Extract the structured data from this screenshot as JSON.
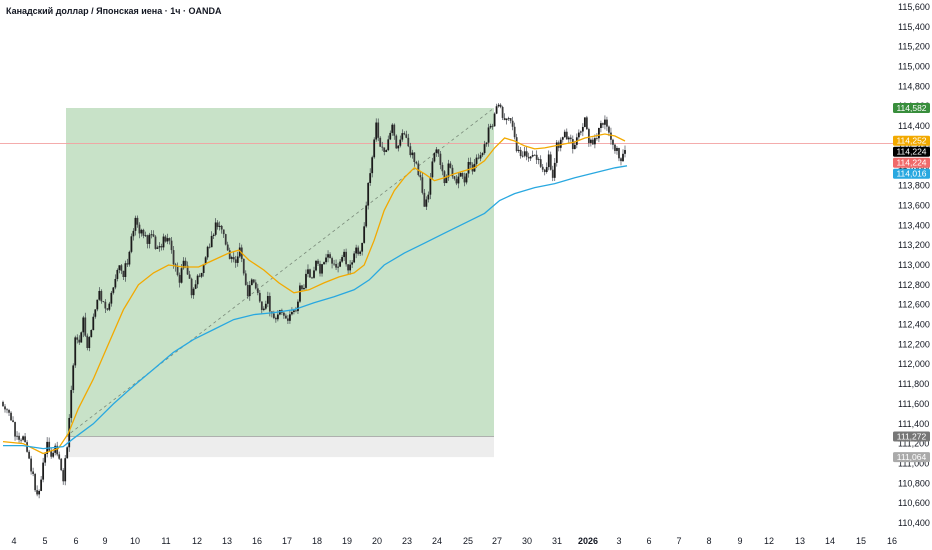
{
  "header": {
    "title": "Канадский доллар / Японская иена · 1ч · OANDA"
  },
  "chart_data": {
    "type": "candlestick",
    "title": "Канадский доллар / Японская иена · 1ч · OANDA",
    "y_ticks": [
      "115,600",
      "115,400",
      "115,200",
      "115,000",
      "114,800",
      "114,600",
      "114,400",
      "114,200",
      "114,000",
      "113,800",
      "113,600",
      "113,400",
      "113,200",
      "113,000",
      "112,800",
      "112,600",
      "112,400",
      "112,200",
      "112,000",
      "111,800",
      "111,600",
      "111,400",
      "111,200",
      "111,000",
      "110,800",
      "110,600",
      "110,400"
    ],
    "ylim": [
      110.4,
      115.6
    ],
    "x_ticks": [
      "4",
      "5",
      "6",
      "9",
      "10",
      "11",
      "12",
      "13",
      "16",
      "17",
      "18",
      "19",
      "20",
      "23",
      "24",
      "25",
      "27",
      "30",
      "31",
      "2026",
      "3",
      "6",
      "7",
      "8",
      "9",
      "12",
      "13",
      "14",
      "15",
      "16"
    ],
    "x_ticks_bold": [
      "2026"
    ],
    "price_tags": [
      {
        "value": 114.582,
        "label": "114,582",
        "color": "#388e3c"
      },
      {
        "value": 114.252,
        "label": "114,252",
        "color": "#f2a900"
      },
      {
        "value": 114.224,
        "label": "114,224",
        "color": "#000000"
      },
      {
        "value": 114.224,
        "label": "114,224",
        "color": "#f06a6a"
      },
      {
        "value": 114.016,
        "label": "114,016",
        "color": "#29a8e0"
      },
      {
        "value": 111.272,
        "label": "111,272",
        "color": "#777777"
      },
      {
        "value": 111.064,
        "label": "111,064",
        "color": "#aaaaaa"
      }
    ],
    "current_price": 114.224,
    "position": {
      "entry": 111.272,
      "target": 114.582,
      "stop": 111.064
    },
    "series": [
      {
        "kind": "candles",
        "points": [
          [
            0,
            111.62
          ],
          [
            4,
            111.55
          ],
          [
            8,
            111.45
          ],
          [
            12,
            111.3
          ],
          [
            16,
            111.2
          ],
          [
            20,
            111.25
          ],
          [
            24,
            111.15
          ],
          [
            28,
            110.95
          ],
          [
            32,
            110.75
          ],
          [
            36,
            110.68
          ],
          [
            40,
            111.0
          ],
          [
            44,
            111.2
          ],
          [
            48,
            111.1
          ],
          [
            52,
            111.15
          ],
          [
            56,
            111.05
          ],
          [
            60,
            110.85
          ],
          [
            64,
            111.2
          ],
          [
            66,
            111.45
          ],
          [
            68,
            111.75
          ],
          [
            70,
            112.0
          ],
          [
            72,
            112.3
          ],
          [
            76,
            112.25
          ],
          [
            80,
            112.45
          ],
          [
            84,
            112.2
          ],
          [
            88,
            112.35
          ],
          [
            92,
            112.55
          ],
          [
            96,
            112.7
          ],
          [
            100,
            112.65
          ],
          [
            104,
            112.55
          ],
          [
            108,
            112.7
          ],
          [
            112,
            112.9
          ],
          [
            116,
            113.0
          ],
          [
            120,
            112.9
          ],
          [
            124,
            113.05
          ],
          [
            128,
            113.25
          ],
          [
            132,
            113.45
          ],
          [
            136,
            113.35
          ],
          [
            140,
            113.3
          ],
          [
            144,
            113.25
          ],
          [
            148,
            113.3
          ],
          [
            152,
            113.2
          ],
          [
            156,
            113.15
          ],
          [
            160,
            113.25
          ],
          [
            164,
            113.3
          ],
          [
            168,
            113.15
          ],
          [
            172,
            112.95
          ],
          [
            176,
            112.85
          ],
          [
            180,
            113.0
          ],
          [
            184,
            112.95
          ],
          [
            188,
            112.7
          ],
          [
            192,
            112.8
          ],
          [
            196,
            112.9
          ],
          [
            200,
            113.0
          ],
          [
            204,
            113.15
          ],
          [
            208,
            113.25
          ],
          [
            212,
            113.4
          ],
          [
            216,
            113.35
          ],
          [
            220,
            113.3
          ],
          [
            224,
            113.15
          ],
          [
            228,
            113.05
          ],
          [
            232,
            113.0
          ],
          [
            236,
            113.2
          ],
          [
            240,
            112.9
          ],
          [
            244,
            112.7
          ],
          [
            248,
            112.85
          ],
          [
            252,
            112.75
          ],
          [
            256,
            112.6
          ],
          [
            260,
            112.55
          ],
          [
            264,
            112.65
          ],
          [
            268,
            112.5
          ],
          [
            272,
            112.45
          ],
          [
            276,
            112.55
          ],
          [
            280,
            112.5
          ],
          [
            284,
            112.45
          ],
          [
            288,
            112.55
          ],
          [
            292,
            112.5
          ],
          [
            296,
            112.75
          ],
          [
            300,
            112.8
          ],
          [
            304,
            112.95
          ],
          [
            308,
            112.85
          ],
          [
            312,
            113.05
          ],
          [
            316,
            112.95
          ],
          [
            320,
            113.0
          ],
          [
            324,
            113.1
          ],
          [
            328,
            113.0
          ],
          [
            332,
            112.95
          ],
          [
            336,
            113.05
          ],
          [
            340,
            113.1
          ],
          [
            344,
            112.95
          ],
          [
            348,
            113.05
          ],
          [
            352,
            113.15
          ],
          [
            356,
            113.1
          ],
          [
            360,
            113.4
          ],
          [
            364,
            113.8
          ],
          [
            368,
            114.05
          ],
          [
            372,
            114.4
          ],
          [
            376,
            114.2
          ],
          [
            380,
            114.1
          ],
          [
            384,
            114.3
          ],
          [
            388,
            114.4
          ],
          [
            392,
            114.2
          ],
          [
            396,
            114.25
          ],
          [
            400,
            114.35
          ],
          [
            404,
            114.2
          ],
          [
            408,
            114.1
          ],
          [
            412,
            114.0
          ],
          [
            416,
            113.85
          ],
          [
            420,
            113.6
          ],
          [
            424,
            113.75
          ],
          [
            428,
            114.0
          ],
          [
            432,
            114.2
          ],
          [
            436,
            114.0
          ],
          [
            440,
            113.85
          ],
          [
            444,
            114.0
          ],
          [
            448,
            113.9
          ],
          [
            452,
            113.8
          ],
          [
            456,
            113.95
          ],
          [
            460,
            113.85
          ],
          [
            464,
            114.0
          ],
          [
            468,
            113.95
          ],
          [
            472,
            114.05
          ],
          [
            476,
            114.1
          ],
          [
            480,
            114.2
          ],
          [
            484,
            114.35
          ],
          [
            488,
            114.4
          ],
          [
            492,
            114.6
          ],
          [
            496,
            114.55
          ],
          [
            500,
            114.45
          ],
          [
            504,
            114.5
          ],
          [
            508,
            114.35
          ],
          [
            512,
            114.15
          ],
          [
            516,
            114.1
          ],
          [
            520,
            114.15
          ],
          [
            524,
            114.05
          ],
          [
            528,
            114.15
          ],
          [
            532,
            114.1
          ],
          [
            536,
            114.0
          ],
          [
            540,
            113.95
          ],
          [
            544,
            114.1
          ],
          [
            548,
            113.85
          ],
          [
            552,
            114.2
          ],
          [
            556,
            114.25
          ],
          [
            560,
            114.3
          ],
          [
            564,
            114.25
          ],
          [
            568,
            114.2
          ],
          [
            572,
            114.3
          ],
          [
            576,
            114.35
          ],
          [
            580,
            114.5
          ],
          [
            584,
            114.25
          ],
          [
            588,
            114.2
          ],
          [
            592,
            114.3
          ],
          [
            596,
            114.4
          ],
          [
            600,
            114.45
          ],
          [
            604,
            114.35
          ],
          [
            608,
            114.2
          ],
          [
            612,
            114.15
          ],
          [
            616,
            114.05
          ],
          [
            620,
            114.2
          ]
        ]
      },
      {
        "kind": "line",
        "name": "",
        "color": "#f2a900",
        "points": [
          [
            0,
            111.22
          ],
          [
            20,
            111.2
          ],
          [
            40,
            111.1
          ],
          [
            55,
            111.15
          ],
          [
            65,
            111.3
          ],
          [
            75,
            111.55
          ],
          [
            90,
            111.85
          ],
          [
            105,
            112.2
          ],
          [
            120,
            112.55
          ],
          [
            135,
            112.8
          ],
          [
            150,
            112.92
          ],
          [
            165,
            113.0
          ],
          [
            180,
            112.98
          ],
          [
            195,
            112.98
          ],
          [
            210,
            113.05
          ],
          [
            225,
            113.12
          ],
          [
            235,
            113.15
          ],
          [
            245,
            113.05
          ],
          [
            260,
            112.95
          ],
          [
            275,
            112.82
          ],
          [
            290,
            112.72
          ],
          [
            305,
            112.75
          ],
          [
            320,
            112.82
          ],
          [
            335,
            112.88
          ],
          [
            350,
            112.92
          ],
          [
            360,
            113.0
          ],
          [
            370,
            113.25
          ],
          [
            380,
            113.55
          ],
          [
            390,
            113.75
          ],
          [
            400,
            113.88
          ],
          [
            410,
            113.98
          ],
          [
            420,
            113.92
          ],
          [
            430,
            113.85
          ],
          [
            440,
            113.88
          ],
          [
            450,
            113.92
          ],
          [
            460,
            113.95
          ],
          [
            470,
            113.98
          ],
          [
            480,
            114.05
          ],
          [
            490,
            114.18
          ],
          [
            500,
            114.28
          ],
          [
            510,
            114.25
          ],
          [
            520,
            114.2
          ],
          [
            530,
            114.17
          ],
          [
            540,
            114.18
          ],
          [
            550,
            114.2
          ],
          [
            560,
            114.22
          ],
          [
            570,
            114.24
          ],
          [
            580,
            114.28
          ],
          [
            590,
            114.3
          ],
          [
            600,
            114.32
          ],
          [
            610,
            114.3
          ],
          [
            620,
            114.25
          ]
        ]
      },
      {
        "kind": "line",
        "name": "",
        "color": "#29a8e0",
        "points": [
          [
            0,
            111.18
          ],
          [
            20,
            111.18
          ],
          [
            40,
            111.15
          ],
          [
            60,
            111.17
          ],
          [
            70,
            111.25
          ],
          [
            90,
            111.4
          ],
          [
            110,
            111.6
          ],
          [
            130,
            111.78
          ],
          [
            150,
            111.95
          ],
          [
            170,
            112.12
          ],
          [
            190,
            112.25
          ],
          [
            210,
            112.35
          ],
          [
            230,
            112.45
          ],
          [
            250,
            112.5
          ],
          [
            270,
            112.52
          ],
          [
            290,
            112.55
          ],
          [
            310,
            112.62
          ],
          [
            330,
            112.68
          ],
          [
            350,
            112.75
          ],
          [
            365,
            112.85
          ],
          [
            380,
            113.0
          ],
          [
            400,
            113.12
          ],
          [
            420,
            113.22
          ],
          [
            440,
            113.32
          ],
          [
            460,
            113.42
          ],
          [
            480,
            113.52
          ],
          [
            495,
            113.65
          ],
          [
            510,
            113.72
          ],
          [
            530,
            113.78
          ],
          [
            550,
            113.82
          ],
          [
            570,
            113.88
          ],
          [
            590,
            113.93
          ],
          [
            610,
            113.98
          ],
          [
            622,
            114.0
          ]
        ]
      }
    ]
  }
}
